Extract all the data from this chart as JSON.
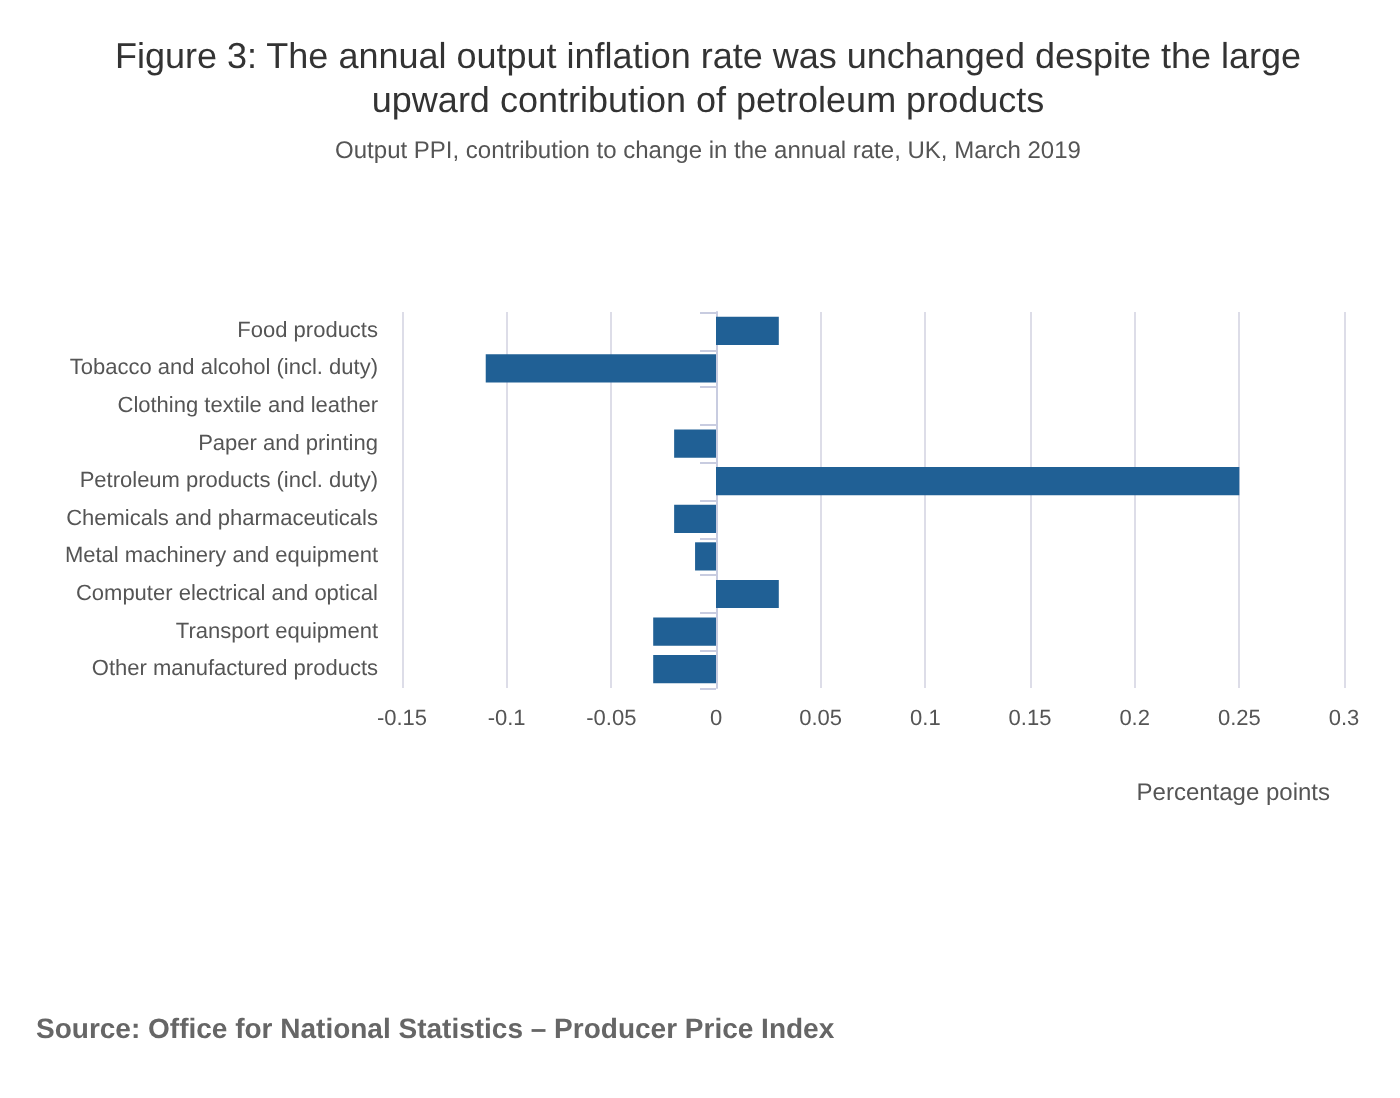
{
  "chart_data": {
    "type": "bar",
    "orientation": "horizontal",
    "title": "Figure 3: The annual output inflation rate was unchanged despite the large\nupward contribution of petroleum products",
    "subtitle": "Output PPI, contribution to change in the annual rate, UK, March 2019",
    "xlabel": "Percentage points",
    "categories": [
      "Food products",
      "Tobacco and alcohol (incl. duty)",
      "Clothing textile and leather",
      "Paper and printing",
      "Petroleum products (incl. duty)",
      "Chemicals and pharmaceuticals",
      "Metal machinery and equipment",
      "Computer electrical and optical",
      "Transport equipment",
      "Other manufactured products"
    ],
    "values": [
      0.03,
      -0.11,
      0,
      -0.02,
      0.25,
      -0.02,
      -0.01,
      0.03,
      -0.03,
      -0.03
    ],
    "color": "#206095",
    "xlim": [
      -0.15,
      0.3
    ],
    "xticks": [
      -0.15,
      -0.1,
      -0.05,
      0,
      0.05,
      0.1,
      0.15,
      0.2,
      0.25,
      0.3
    ],
    "grid": "x",
    "annotations": [
      "Source: Office for National Statistics – Producer Price Index"
    ]
  }
}
